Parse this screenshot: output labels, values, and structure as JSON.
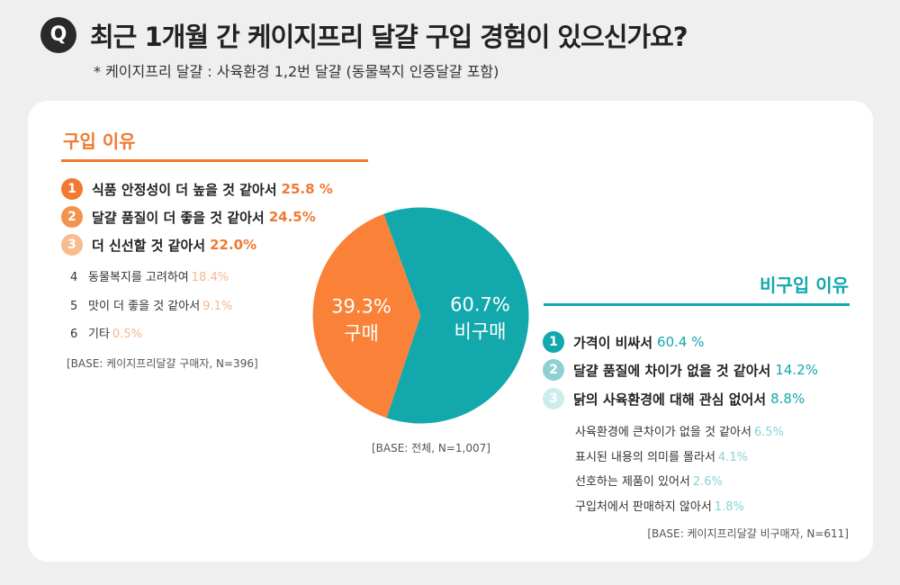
{
  "question": {
    "badge": "Q",
    "title": "최근 1개월 간 케이지프리 달걀 구입 경험이 있으신가요?",
    "note": "* 케이지프리 달걀 : 사육환경 1,2번 달걀 (동물복지 인증달걀 포함)"
  },
  "colors": {
    "orange": "#f07a32",
    "teal": "#12a8ac"
  },
  "purchase_reasons": {
    "title": "구입 이유",
    "items": [
      {
        "rank": "1",
        "label": "식품 안정성이 더 높을 것 같아서",
        "value": "25.8 %"
      },
      {
        "rank": "2",
        "label": "달걀 품질이 더 좋을 것 같아서",
        "value": "24.5%"
      },
      {
        "rank": "3",
        "label": "더 신선할 것 같아서",
        "value": "22.0%"
      },
      {
        "rank": "4",
        "label": "동물복지를 고려하여",
        "value": "18.4%"
      },
      {
        "rank": "5",
        "label": "맛이 더 좋을 것 같아서",
        "value": "9.1%"
      },
      {
        "rank": "6",
        "label": "기타",
        "value": "0.5%"
      }
    ],
    "base": "[BASE: 케이지프리달걀 구매자, N=396]"
  },
  "non_purchase_reasons": {
    "title": "비구입 이유",
    "items": [
      {
        "rank": "1",
        "label": "가격이 비싸서",
        "value": "60.4 %"
      },
      {
        "rank": "2",
        "label": "달걀 품질에 차이가 없을 것 같아서",
        "value": "14.2%"
      },
      {
        "rank": "3",
        "label": "닭의 사육환경에 대해 관심 없어서",
        "value": "8.8%"
      },
      {
        "rank": "",
        "label": "사육환경에 큰차이가 없을 것 같아서",
        "value": "6.5%"
      },
      {
        "rank": "",
        "label": "표시된 내용의 의미를 몰라서",
        "value": "4.1%"
      },
      {
        "rank": "",
        "label": "선호하는 제품이 있어서",
        "value": "2.6%"
      },
      {
        "rank": "",
        "label": "구입처에서 판매하지 않아서",
        "value": "1.8%"
      }
    ],
    "base": "[BASE: 케이지프리달걀 비구매자, N=611]"
  },
  "pie_base": "[BASE: 전체, N=1,007]",
  "chart_data": {
    "type": "pie",
    "slices": [
      {
        "label": "비구매",
        "value": 60.7,
        "value_text": "60.7%",
        "color": "#12a8ac"
      },
      {
        "label": "구매",
        "value": 39.3,
        "value_text": "39.3%",
        "color": "#f98238"
      }
    ]
  }
}
